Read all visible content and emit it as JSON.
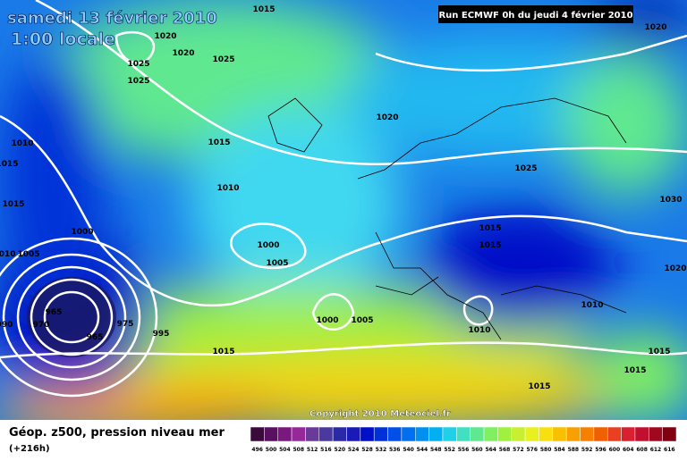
{
  "header": {
    "date": "samedi 13 février 2010",
    "time": "1:00 locale",
    "run": "Run ECMWF 0h du jeudi 4 février 2010"
  },
  "copyright": "Copyright 2010 Meteociel.fr",
  "footer": {
    "title": "Géop. z500, pression niveau mer",
    "lead": "(+216h)"
  },
  "isobar_labels": [
    "1015",
    "1020",
    "1020",
    "1025",
    "1025",
    "1025",
    "1010",
    "1015",
    "1015",
    "1010",
    "1005",
    "1000",
    "1015",
    "1010",
    "1000",
    "1005",
    "1020",
    "1025",
    "1015",
    "1015",
    "1030",
    "1020",
    "1010",
    "1000",
    "1005",
    "1010",
    "965",
    "970",
    "965",
    "975",
    "995",
    "990",
    "1015",
    "1015",
    "1015",
    "1015",
    "1020"
  ],
  "colorbar": {
    "labels": [
      496,
      500,
      504,
      508,
      512,
      516,
      520,
      524,
      528,
      532,
      536,
      540,
      544,
      548,
      552,
      556,
      560,
      564,
      568,
      572,
      576,
      580,
      584,
      588,
      592,
      596,
      600,
      604,
      608,
      612,
      616
    ],
    "colors": [
      "#3a0a3a",
      "#5a1060",
      "#7a1880",
      "#962898",
      "#6a3a9a",
      "#4a3aa0",
      "#2a2aa8",
      "#1a1ab8",
      "#0010c8",
      "#0030d8",
      "#0050e8",
      "#0070f0",
      "#0090f0",
      "#00b0f0",
      "#20d0e8",
      "#40e0c0",
      "#60e890",
      "#80f060",
      "#a0f040",
      "#c8f030",
      "#e8f020",
      "#f8e010",
      "#f8c000",
      "#f8a000",
      "#f88000",
      "#f06000",
      "#e84020",
      "#d82030",
      "#c01030",
      "#a00820",
      "#800010"
    ]
  }
}
